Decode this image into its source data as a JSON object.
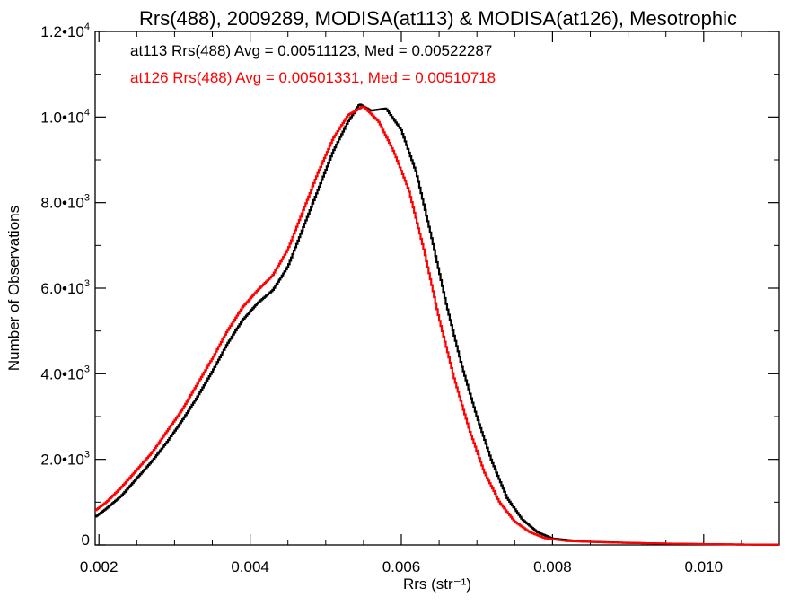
{
  "chart_data": {
    "type": "line",
    "title": "Rrs(488), 2009289, MODISA(at113) & MODISA(at126), Mesotrophic",
    "xlabel": "Rrs (str⁻¹)",
    "ylabel": "Number of Observations",
    "xlim": [
      0.00195,
      0.011
    ],
    "ylim": [
      0,
      12000
    ],
    "x_ticks": [
      {
        "value": 0.002,
        "label": "0.002"
      },
      {
        "value": 0.004,
        "label": "0.004"
      },
      {
        "value": 0.006,
        "label": "0.006"
      },
      {
        "value": 0.008,
        "label": "0.008"
      },
      {
        "value": 0.01,
        "label": "0.010"
      }
    ],
    "y_ticks": [
      {
        "value": 0,
        "mant": "0",
        "exp": ""
      },
      {
        "value": 2000,
        "mant": "2.0•10",
        "exp": "3"
      },
      {
        "value": 4000,
        "mant": "4.0•10",
        "exp": "3"
      },
      {
        "value": 6000,
        "mant": "6.0•10",
        "exp": "3"
      },
      {
        "value": 8000,
        "mant": "8.0•10",
        "exp": "3"
      },
      {
        "value": 10000,
        "mant": "1.0•10",
        "exp": "4"
      },
      {
        "value": 12000,
        "mant": "1.2•10",
        "exp": "4"
      }
    ],
    "annotations": [
      {
        "text": "at113 Rrs(488) Avg = 0.00511123, Med = 0.00522287",
        "color": "#000000"
      },
      {
        "text": "at126 Rrs(488) Avg = 0.00501331, Med = 0.00510718",
        "color": "#ff0000"
      }
    ],
    "series": [
      {
        "color": "#000000",
        "points": [
          [
            0.00195,
            650
          ],
          [
            0.0021,
            850
          ],
          [
            0.0023,
            1150
          ],
          [
            0.0025,
            1550
          ],
          [
            0.0027,
            1950
          ],
          [
            0.0029,
            2400
          ],
          [
            0.0031,
            2900
          ],
          [
            0.0033,
            3450
          ],
          [
            0.0035,
            4050
          ],
          [
            0.0037,
            4700
          ],
          [
            0.0039,
            5250
          ],
          [
            0.0041,
            5650
          ],
          [
            0.0043,
            5950
          ],
          [
            0.0045,
            6500
          ],
          [
            0.0047,
            7400
          ],
          [
            0.0049,
            8300
          ],
          [
            0.0051,
            9200
          ],
          [
            0.0053,
            9900
          ],
          [
            0.00545,
            10300
          ],
          [
            0.0056,
            10150
          ],
          [
            0.0058,
            10200
          ],
          [
            0.006,
            9700
          ],
          [
            0.0062,
            8700
          ],
          [
            0.0064,
            7200
          ],
          [
            0.0066,
            5600
          ],
          [
            0.0068,
            4200
          ],
          [
            0.007,
            3000
          ],
          [
            0.0072,
            1950
          ],
          [
            0.0074,
            1100
          ],
          [
            0.0076,
            600
          ],
          [
            0.0078,
            300
          ],
          [
            0.008,
            150
          ],
          [
            0.0084,
            80
          ],
          [
            0.009,
            50
          ],
          [
            0.0095,
            30
          ],
          [
            0.01,
            20
          ],
          [
            0.0105,
            10
          ],
          [
            0.011,
            5
          ]
        ]
      },
      {
        "color": "#ff0000",
        "points": [
          [
            0.00195,
            800
          ],
          [
            0.0021,
            1000
          ],
          [
            0.0023,
            1350
          ],
          [
            0.0025,
            1750
          ],
          [
            0.0027,
            2150
          ],
          [
            0.0029,
            2650
          ],
          [
            0.0031,
            3150
          ],
          [
            0.0033,
            3750
          ],
          [
            0.0035,
            4350
          ],
          [
            0.0037,
            5000
          ],
          [
            0.0039,
            5550
          ],
          [
            0.0041,
            5950
          ],
          [
            0.0043,
            6300
          ],
          [
            0.0045,
            6900
          ],
          [
            0.0047,
            7800
          ],
          [
            0.0049,
            8700
          ],
          [
            0.0051,
            9500
          ],
          [
            0.0053,
            10050
          ],
          [
            0.0055,
            10250
          ],
          [
            0.0057,
            9900
          ],
          [
            0.0059,
            9200
          ],
          [
            0.0061,
            8300
          ],
          [
            0.0063,
            6900
          ],
          [
            0.0065,
            5300
          ],
          [
            0.0067,
            3900
          ],
          [
            0.0069,
            2700
          ],
          [
            0.0071,
            1700
          ],
          [
            0.0073,
            1000
          ],
          [
            0.0075,
            550
          ],
          [
            0.0077,
            300
          ],
          [
            0.0079,
            160
          ],
          [
            0.0082,
            90
          ],
          [
            0.0088,
            55
          ],
          [
            0.0094,
            35
          ],
          [
            0.01,
            20
          ],
          [
            0.0105,
            10
          ],
          [
            0.011,
            5
          ]
        ]
      }
    ]
  }
}
